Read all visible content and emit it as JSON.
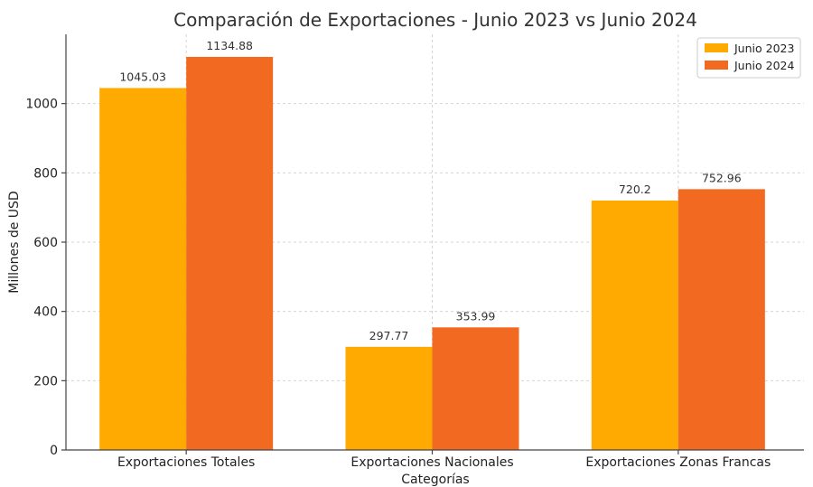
{
  "chart_data": {
    "type": "bar",
    "title": "Comparación de Exportaciones - Junio 2023 vs Junio 2024",
    "xlabel": "Categorías",
    "ylabel": "Millones de USD",
    "categories": [
      "Exportaciones Totales",
      "Exportaciones Nacionales",
      "Exportaciones Zonas Francas"
    ],
    "series": [
      {
        "name": "Junio 2023",
        "color": "#FFAA00",
        "values": [
          1045.03,
          297.77,
          720.2
        ],
        "labels": [
          "1045.03",
          "297.77",
          "720.2"
        ]
      },
      {
        "name": "Junio 2024",
        "color": "#F26A22",
        "values": [
          1134.88,
          353.99,
          752.96
        ],
        "labels": [
          "1134.88",
          "353.99",
          "752.96"
        ]
      }
    ],
    "ylim": [
      0,
      1200
    ],
    "yticks": [
      0,
      200,
      400,
      600,
      800,
      1000
    ],
    "ytick_labels": [
      "0",
      "200",
      "400",
      "600",
      "800",
      "1000"
    ],
    "grid": true,
    "legend_position": "top-right"
  }
}
